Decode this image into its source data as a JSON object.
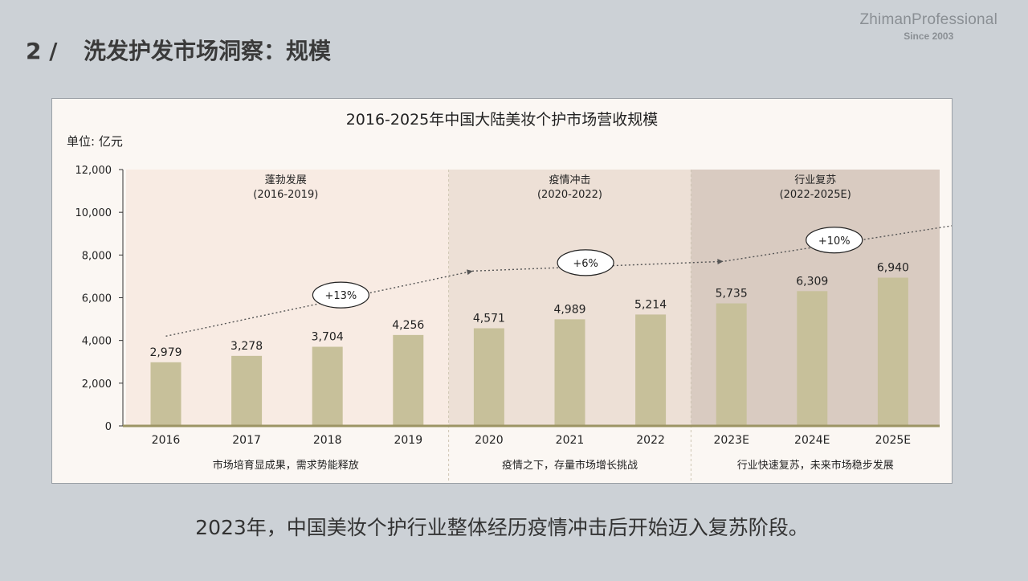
{
  "brand": {
    "name": "ZhimanProfessional",
    "since": "Since 2003"
  },
  "slide": {
    "number": "2 /",
    "title": "洗发护发市场洞察：规模",
    "caption": "2023年，中国美妆个护行业整体经历疫情冲击后开始迈入复苏阶段。"
  },
  "colors": {
    "bar": "#c7c09a",
    "baseline": "#9c9464",
    "phase1_bg": "#f8ebe3",
    "phase2_bg": "#ede0d6",
    "phase3_bg": "#d9cbc1",
    "trend": "#555555"
  },
  "chart_data": {
    "type": "bar",
    "title": "2016-2025年中国大陆美妆个护市场营收规模",
    "unit": "单位: 亿元",
    "categories": [
      "2016",
      "2017",
      "2018",
      "2019",
      "2020",
      "2021",
      "2022",
      "2023E",
      "2024E",
      "2025E"
    ],
    "values": [
      2979,
      3278,
      3704,
      4256,
      4571,
      4989,
      5214,
      5735,
      6309,
      6940
    ],
    "value_labels": [
      "2,979",
      "3,278",
      "3,704",
      "4,256",
      "4,571",
      "4,989",
      "5,214",
      "5,735",
      "6,309",
      "6,940"
    ],
    "ylim": [
      0,
      12000
    ],
    "yticks": [
      0,
      2000,
      4000,
      6000,
      8000,
      10000,
      12000
    ],
    "ytick_labels": [
      "0",
      "2,000",
      "4,000",
      "6,000",
      "8,000",
      "10,000",
      "12,000"
    ],
    "phases": [
      {
        "name": "蓬勃发展",
        "range": "(2016-2019)",
        "growth": "+13%",
        "note": "市场培育显成果，需求势能释放",
        "start": 0,
        "end": 3
      },
      {
        "name": "疫情冲击",
        "range": "(2020-2022)",
        "growth": "+6%",
        "note": "疫情之下，存量市场增长挑战",
        "start": 4,
        "end": 6
      },
      {
        "name": "行业复苏",
        "range": "(2022-2025E)",
        "growth": "+10%",
        "note": "行业快速复苏，未来市场稳步发展",
        "start": 7,
        "end": 9
      }
    ],
    "trend_line": {
      "points": [
        [
          0,
          4200
        ],
        [
          3.8,
          7250
        ],
        [
          6.9,
          7700
        ],
        [
          9.95,
          9500
        ]
      ]
    }
  }
}
